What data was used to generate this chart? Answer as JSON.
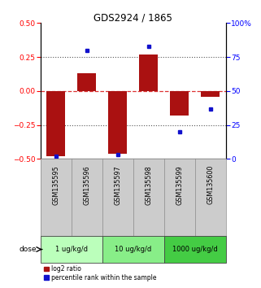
{
  "title": "GDS2924 / 1865",
  "samples": [
    "GSM135595",
    "GSM135596",
    "GSM135597",
    "GSM135598",
    "GSM135599",
    "GSM135600"
  ],
  "log2_ratio": [
    -0.48,
    0.13,
    -0.46,
    0.27,
    -0.18,
    -0.04
  ],
  "percentile_rank": [
    2,
    80,
    3,
    83,
    20,
    37
  ],
  "dose_groups": [
    {
      "label": "1 ug/kg/d",
      "samples": [
        "GSM135595",
        "GSM135596"
      ],
      "color": "#bbffbb"
    },
    {
      "label": "10 ug/kg/d",
      "samples": [
        "GSM135597",
        "GSM135598"
      ],
      "color": "#88ee88"
    },
    {
      "label": "1000 ug/kg/d",
      "samples": [
        "GSM135599",
        "GSM135600"
      ],
      "color": "#44cc44"
    }
  ],
  "ylim_left": [
    -0.5,
    0.5
  ],
  "ylim_right": [
    0,
    100
  ],
  "yticks_left": [
    -0.5,
    -0.25,
    0,
    0.25,
    0.5
  ],
  "yticks_right": [
    0,
    25,
    50,
    75,
    100
  ],
  "bar_color": "#aa1111",
  "dot_color": "#1111cc",
  "hline_color": "#dd3333",
  "dotline_color": "#555555",
  "bg_plot": "#ffffff",
  "bg_sample_labels": "#cccccc",
  "bar_width": 0.6
}
